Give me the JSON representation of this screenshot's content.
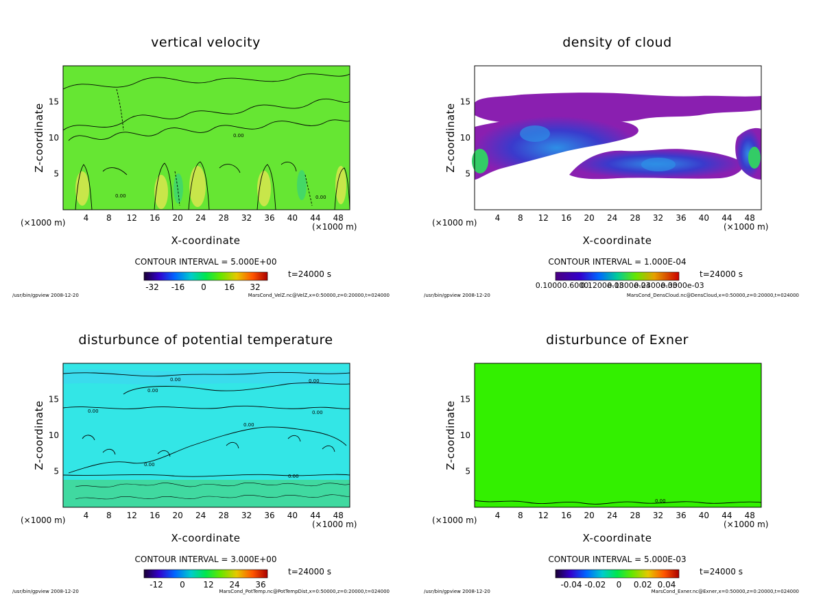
{
  "figure": {
    "time_label": "t=24000 s",
    "program_label": "/usr/bin/gpview  2008-12-20"
  },
  "chart_data": [
    {
      "type": "heatmap",
      "title": "vertical velocity",
      "xlabel": "X-coordinate",
      "ylabel": "Z-coordinate",
      "x_unit_label": "(×1000 m)",
      "x_ticks": [
        4,
        8,
        12,
        16,
        20,
        24,
        28,
        32,
        36,
        40,
        44,
        48
      ],
      "y_ticks": [
        5,
        10,
        15
      ],
      "xlim": [
        0,
        50
      ],
      "ylim": [
        0,
        20
      ],
      "contour_interval": "CONTOUR INTERVAL = 5.000E+00",
      "colorbar_ticks": [
        "-32",
        "-16",
        "0",
        "16",
        "32"
      ],
      "colors": {
        "background": "#66e633",
        "high": "#c8e64a",
        "low": "#44d866"
      },
      "contour_labels": [
        "0.00"
      ],
      "source": "MarsCond_VelZ.nc@VelZ,x=0:50000,z=0:20000,t=024000"
    },
    {
      "type": "heatmap",
      "title": "density of cloud",
      "xlabel": "X-coordinate",
      "ylabel": "Z-coordinate",
      "x_unit_label": "(×1000 m)",
      "x_ticks": [
        4,
        8,
        12,
        16,
        20,
        24,
        28,
        32,
        36,
        40,
        44,
        48
      ],
      "y_ticks": [
        5,
        10,
        15
      ],
      "xlim": [
        0,
        50
      ],
      "ylim": [
        0,
        20
      ],
      "contour_interval": "CONTOUR INTERVAL = 1.000E-04",
      "colorbar_ticks": [
        "0.1000",
        "0.6000",
        "0.1200e-03",
        "0.1800e-03",
        "0.2400e-03",
        "0.3000e-03"
      ],
      "colors": {
        "low": "#8a1fb0",
        "mid": "#3a3acc",
        "high": "#2e8fe6",
        "peak": "#33cc66"
      },
      "source": "MarsCond_DensCloud.nc@DensCloud,x=0:50000,z=0:20000,t=024000"
    },
    {
      "type": "heatmap",
      "title": "disturbunce of potential temperature",
      "xlabel": "X-coordinate",
      "ylabel": "Z-coordinate",
      "x_unit_label": "(×1000 m)",
      "x_ticks": [
        4,
        8,
        12,
        16,
        20,
        24,
        28,
        32,
        36,
        40,
        44,
        48
      ],
      "y_ticks": [
        5,
        10,
        15
      ],
      "xlim": [
        0,
        50
      ],
      "ylim": [
        0,
        20
      ],
      "contour_interval": "CONTOUR INTERVAL = 3.000E+00",
      "colorbar_ticks": [
        "-12",
        "0",
        "12",
        "24",
        "36"
      ],
      "colors": {
        "upper": "#33e6e6",
        "lower": "#40d9a0"
      },
      "contour_labels": [
        "0.00"
      ],
      "source": "MarsCond_PotTemp.nc@PotTempDist,x=0:50000,z=0:20000,t=024000"
    },
    {
      "type": "heatmap",
      "title": "disturbunce of Exner",
      "xlabel": "X-coordinate",
      "ylabel": "Z-coordinate",
      "x_unit_label": "(×1000 m)",
      "x_ticks": [
        4,
        8,
        12,
        16,
        20,
        24,
        28,
        32,
        36,
        40,
        44,
        48
      ],
      "y_ticks": [
        5,
        10,
        15
      ],
      "xlim": [
        0,
        50
      ],
      "ylim": [
        0,
        20
      ],
      "contour_interval": "CONTOUR INTERVAL = 5.000E-03",
      "colorbar_ticks": [
        "-0.04",
        "-0.02",
        "0",
        "0.02",
        "0.04"
      ],
      "colors": {
        "background": "#33f000"
      },
      "contour_labels": [
        "0.00"
      ],
      "source": "MarsCond_Exner.nc@Exner,x=0:50000,z=0:20000,t=024000"
    }
  ]
}
